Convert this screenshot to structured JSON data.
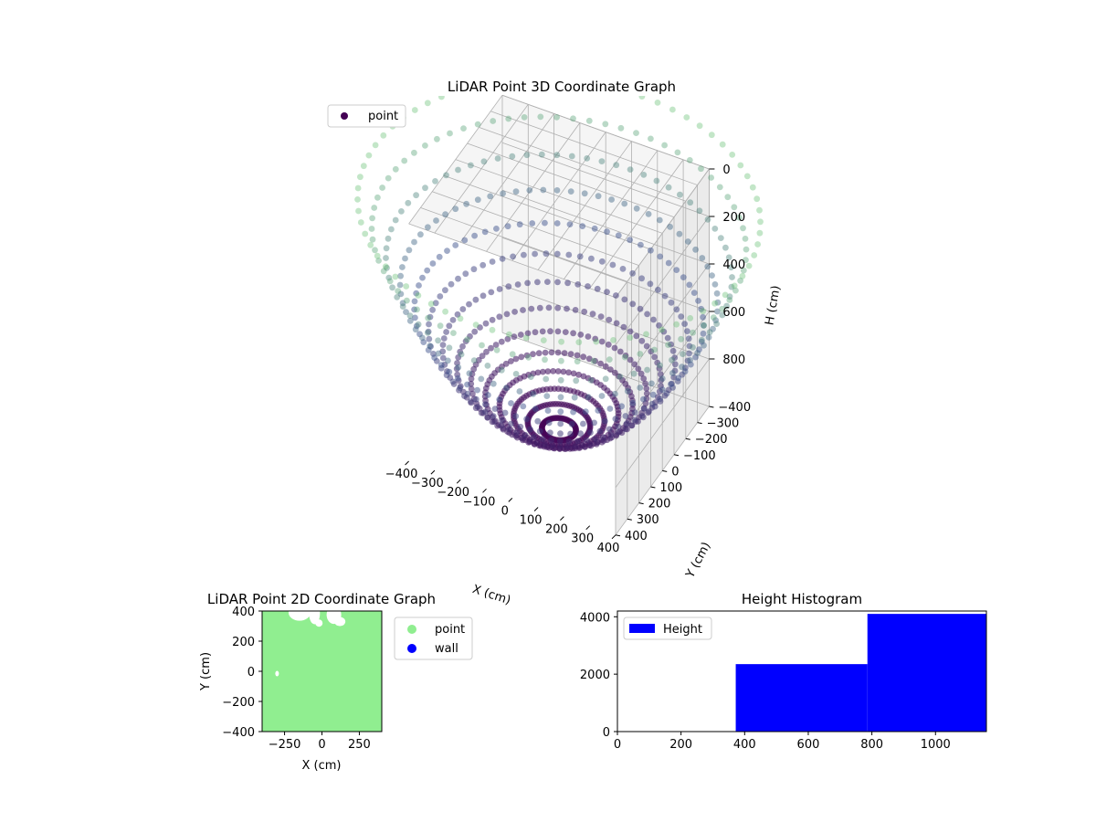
{
  "colors": {
    "point3d_dark": "#440154",
    "point3d_mid": "#3b528b",
    "point3d_light": "#5ec962",
    "point2d": "#90ee90",
    "wall": "#0000ff",
    "hist": "#0000ff",
    "pane": "#f2f2f2",
    "grid": "#b0b0b0"
  },
  "chart_data": [
    {
      "type": "scatter",
      "title": "LiDAR Point 3D Coordinate Graph",
      "xlabel": "X (cm)",
      "ylabel": "Y (cm)",
      "zlabel": "H (cm)",
      "xlim": [
        -400,
        400
      ],
      "ylim": [
        -400,
        400
      ],
      "zlim": [
        0,
        1000
      ],
      "z_inverted": true,
      "x_ticks": [
        "−400",
        "−300",
        "−200",
        "−100",
        "0",
        "100",
        "200",
        "300",
        "400"
      ],
      "y_ticks": [
        "−400",
        "−300",
        "−200",
        "−100",
        "0",
        "100",
        "200",
        "300",
        "400"
      ],
      "z_ticks": [
        "0",
        "200",
        "400",
        "600",
        "800"
      ],
      "legend": {
        "placement": "top-left",
        "entries": [
          "point"
        ]
      },
      "series": [
        {
          "name": "point",
          "pattern": "radial scan rings forming a bowl; height grows with distance from center",
          "colormap": "viridis by height",
          "rings": [
            {
              "radius": 60,
              "height": 980
            },
            {
              "radius": 110,
              "height": 960
            },
            {
              "radius": 160,
              "height": 935
            },
            {
              "radius": 210,
              "height": 900
            },
            {
              "radius": 260,
              "height": 860
            },
            {
              "radius": 310,
              "height": 810
            },
            {
              "radius": 360,
              "height": 750
            },
            {
              "radius": 410,
              "height": 680
            },
            {
              "radius": 460,
              "height": 600
            },
            {
              "radius": 510,
              "height": 510
            },
            {
              "radius": 560,
              "height": 410
            },
            {
              "radius": 610,
              "height": 300
            },
            {
              "radius": 660,
              "height": 180
            },
            {
              "radius": 710,
              "height": 60
            }
          ]
        }
      ],
      "grid": true
    },
    {
      "type": "scatter",
      "title": "LiDAR Point 2D Coordinate Graph",
      "xlabel": "X (cm)",
      "ylabel": "Y (cm)",
      "xlim": [
        -400,
        400
      ],
      "ylim": [
        -400,
        400
      ],
      "x_ticks": [
        "−250",
        "0",
        "250"
      ],
      "y_ticks": [
        "400",
        "200",
        "0",
        "−200",
        "−400"
      ],
      "legend": {
        "placement": "outside-right",
        "entries": [
          "point",
          "wall"
        ]
      },
      "series": [
        {
          "name": "point",
          "fill": "dense, covers entire plot area"
        },
        {
          "name": "wall",
          "points": []
        }
      ]
    },
    {
      "type": "bar",
      "title": "Height Histogram",
      "xlabel": "",
      "ylabel": "",
      "xlim": [
        0,
        1160
      ],
      "ylim": [
        0,
        4200
      ],
      "x_ticks": [
        "0",
        "200",
        "400",
        "600",
        "800",
        "1000"
      ],
      "y_ticks": [
        "0",
        "2000",
        "4000"
      ],
      "legend": {
        "placement": "top-left",
        "entries": [
          "Height"
        ]
      },
      "bins": [
        {
          "x0": 0,
          "x1": 372,
          "count": 0
        },
        {
          "x0": 372,
          "x1": 786,
          "count": 2350
        },
        {
          "x0": 786,
          "x1": 1160,
          "count": 4100
        }
      ]
    }
  ]
}
